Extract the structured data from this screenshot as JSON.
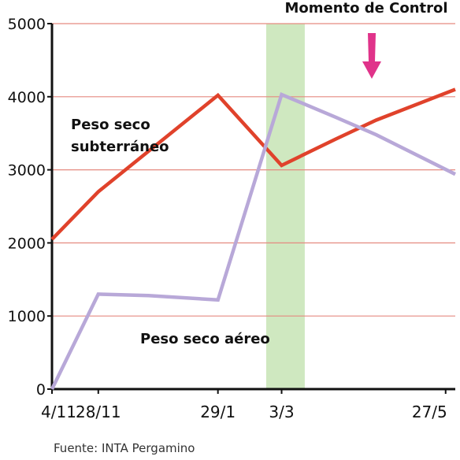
{
  "chart_data": {
    "type": "line",
    "categories": [
      "4/11",
      "28/11",
      "29/1",
      "3/3",
      "27/5"
    ],
    "x_positions": [
      0,
      24,
      86,
      119,
      204
    ],
    "x_domain": [
      0,
      209
    ],
    "ylim": [
      0,
      5000
    ],
    "yticks": [
      0,
      1000,
      2000,
      3000,
      4000,
      5000
    ],
    "series": [
      {
        "name": "Peso seco subterráneo",
        "name_lines": [
          "Peso seco",
          "subterráneo"
        ],
        "color": "#e0422b",
        "x": [
          0,
          24,
          86,
          119,
          147,
          168,
          209
        ],
        "values": [
          2050,
          2700,
          4020,
          3060,
          3420,
          3680,
          4100
        ]
      },
      {
        "name": "Peso seco aéreo",
        "name_lines": [
          "Peso seco aéreo"
        ],
        "color": "#b8a8d8",
        "x": [
          0,
          24,
          50,
          86,
          119,
          147,
          168,
          209
        ],
        "values": [
          0,
          1300,
          1280,
          1220,
          4030,
          3720,
          3480,
          2940
        ]
      }
    ],
    "highlight": {
      "label": "Momento de Control",
      "x_start": 111,
      "x_end": 131,
      "color": "#cfe8c0",
      "arrow_color": "#e0338a"
    },
    "source": "Fuente: INTA Pergamino"
  }
}
